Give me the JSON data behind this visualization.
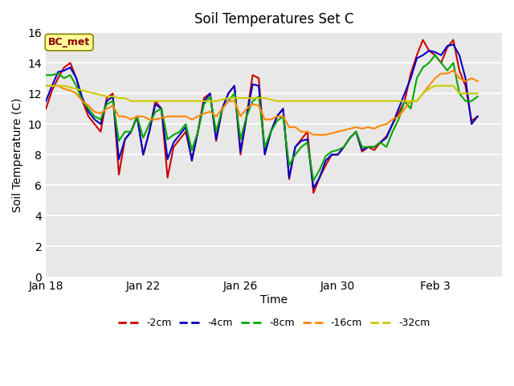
{
  "title": "Soil Temperatures Set C",
  "xlabel": "Time",
  "ylabel": "Soil Temperature (C)",
  "ylim": [
    0,
    16
  ],
  "yticks": [
    0,
    2,
    4,
    6,
    8,
    10,
    12,
    14,
    16
  ],
  "bg_color": "#e8e8e8",
  "fig_color": "#ffffff",
  "annotation_text": "BC_met",
  "annotation_color": "#8b0000",
  "annotation_bg": "#ffff99",
  "series_colors": {
    "-2cm": "#cc0000",
    "-4cm": "#0000cc",
    "-8cm": "#00aa00",
    "-16cm": "#ff8800",
    "-32cm": "#cccc00"
  },
  "start_day": 18,
  "step_hours": 6,
  "data_2cm": [
    11.0,
    12.2,
    13.0,
    13.7,
    14.0,
    13.0,
    11.5,
    10.5,
    10.0,
    9.5,
    11.7,
    12.0,
    6.7,
    9.0,
    9.5,
    10.5,
    8.0,
    9.5,
    11.5,
    11.0,
    6.5,
    8.5,
    9.0,
    9.5,
    7.7,
    9.5,
    11.7,
    12.0,
    8.9,
    11.0,
    12.0,
    12.5,
    8.0,
    10.5,
    13.2,
    13.0,
    8.1,
    9.5,
    10.5,
    11.0,
    6.4,
    8.5,
    9.0,
    9.5,
    5.5,
    6.5,
    7.3,
    8.0,
    8.0,
    8.5,
    9.1,
    9.5,
    8.2,
    8.5,
    8.3,
    8.8,
    9.2,
    10.0,
    10.7,
    11.5,
    13.3,
    14.5,
    15.5,
    14.8,
    14.5,
    14.0,
    15.0,
    15.5,
    13.5,
    12.5,
    10.2,
    10.5
  ],
  "data_4cm": [
    11.5,
    12.5,
    13.4,
    13.5,
    13.7,
    13.0,
    11.7,
    10.8,
    10.3,
    10.0,
    11.5,
    11.8,
    7.7,
    9.0,
    9.5,
    10.5,
    8.0,
    9.5,
    11.3,
    11.0,
    7.7,
    8.8,
    9.3,
    9.8,
    7.6,
    9.5,
    11.5,
    12.0,
    9.0,
    11.0,
    12.0,
    12.5,
    8.2,
    10.5,
    12.6,
    12.5,
    8.0,
    9.5,
    10.5,
    11.0,
    6.5,
    8.5,
    8.9,
    9.0,
    5.8,
    6.5,
    7.6,
    8.0,
    8.0,
    8.5,
    9.1,
    9.5,
    8.3,
    8.5,
    8.5,
    8.8,
    9.1,
    10.0,
    11.0,
    12.0,
    13.0,
    14.3,
    14.5,
    14.8,
    14.7,
    14.5,
    15.1,
    15.2,
    14.5,
    13.0,
    10.0,
    10.5
  ],
  "data_8cm": [
    13.2,
    13.2,
    13.3,
    13.0,
    13.2,
    12.5,
    11.5,
    11.0,
    10.5,
    10.3,
    11.3,
    11.5,
    8.9,
    9.5,
    9.5,
    10.5,
    9.1,
    10.0,
    10.8,
    11.0,
    9.0,
    9.3,
    9.5,
    10.0,
    8.3,
    9.5,
    11.3,
    11.8,
    9.5,
    11.0,
    11.5,
    12.0,
    9.0,
    10.5,
    11.5,
    11.8,
    8.5,
    9.5,
    10.2,
    10.5,
    7.3,
    8.0,
    8.5,
    8.8,
    6.3,
    7.0,
    7.9,
    8.2,
    8.3,
    8.5,
    9.1,
    9.5,
    8.5,
    8.5,
    8.5,
    8.8,
    8.5,
    9.5,
    10.3,
    11.5,
    11.0,
    13.0,
    13.7,
    14.0,
    14.5,
    14.0,
    13.5,
    14.0,
    12.0,
    11.5,
    11.5,
    11.8
  ],
  "data_16cm": [
    12.5,
    12.5,
    12.5,
    12.3,
    12.2,
    12.0,
    11.5,
    11.2,
    10.8,
    10.7,
    11.0,
    11.2,
    10.5,
    10.5,
    10.3,
    10.5,
    10.5,
    10.3,
    10.3,
    10.4,
    10.5,
    10.5,
    10.5,
    10.5,
    10.3,
    10.5,
    10.7,
    10.8,
    10.5,
    11.0,
    11.5,
    11.5,
    10.5,
    11.0,
    11.3,
    11.2,
    10.3,
    10.3,
    10.5,
    10.5,
    9.8,
    9.8,
    9.5,
    9.5,
    9.3,
    9.3,
    9.3,
    9.4,
    9.5,
    9.6,
    9.7,
    9.8,
    9.7,
    9.8,
    9.7,
    9.9,
    10.0,
    10.3,
    10.5,
    11.0,
    11.5,
    11.5,
    12.0,
    12.5,
    13.0,
    13.3,
    13.3,
    13.5,
    13.0,
    12.8,
    13.0,
    12.8
  ],
  "data_32cm": [
    12.5,
    12.5,
    12.5,
    12.5,
    12.4,
    12.3,
    12.2,
    12.1,
    12.0,
    11.9,
    11.8,
    11.8,
    11.7,
    11.7,
    11.5,
    11.5,
    11.5,
    11.5,
    11.5,
    11.5,
    11.5,
    11.5,
    11.5,
    11.5,
    11.5,
    11.5,
    11.5,
    11.5,
    11.5,
    11.6,
    11.7,
    11.7,
    11.7,
    11.7,
    11.7,
    11.7,
    11.7,
    11.6,
    11.5,
    11.5,
    11.5,
    11.5,
    11.5,
    11.5,
    11.5,
    11.5,
    11.5,
    11.5,
    11.5,
    11.5,
    11.5,
    11.5,
    11.5,
    11.5,
    11.5,
    11.5,
    11.5,
    11.5,
    11.5,
    11.5,
    11.5,
    11.5,
    12.0,
    12.3,
    12.5,
    12.5,
    12.5,
    12.5,
    12.0,
    12.0,
    12.0,
    12.0
  ]
}
